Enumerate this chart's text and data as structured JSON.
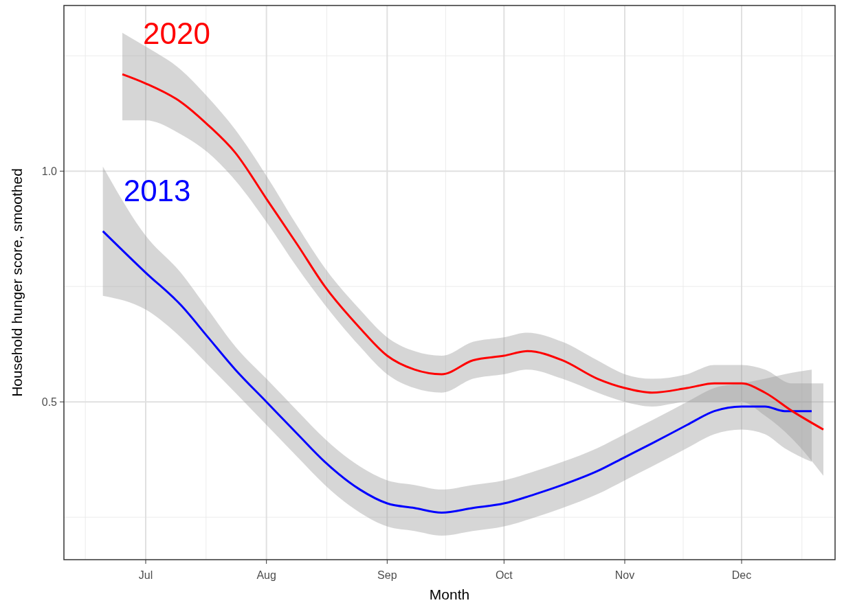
{
  "chart_data": {
    "type": "line",
    "xlabel": "Month",
    "ylabel": "Household hunger score, smoothed",
    "xlim": [
      "--06-10",
      "--12-25"
    ],
    "xticks": [
      {
        "value": "--07-01",
        "label": "Jul"
      },
      {
        "value": "--08-01",
        "label": "Aug"
      },
      {
        "value": "--09-01",
        "label": "Sep"
      },
      {
        "value": "--10-01",
        "label": "Oct"
      },
      {
        "value": "--11-01",
        "label": "Nov"
      },
      {
        "value": "--12-01",
        "label": "Dec"
      }
    ],
    "ylim": [
      0.158,
      1.359
    ],
    "yticks": [
      0.5,
      {
        "value": 1,
        "label": "1.0"
      }
    ],
    "grid": true,
    "series": [
      {
        "name": "2013",
        "color": "#0000ff",
        "x": [
          "--06-20",
          "--07-01",
          "--07-10",
          "--07-17",
          "--07-24",
          "--08-01",
          "--08-09",
          "--08-16",
          "--08-25",
          "--09-01",
          "--09-08",
          "--09-15",
          "--09-23",
          "--10-01",
          "--10-09",
          "--10-16",
          "--10-25",
          "--11-01",
          "--11-08",
          "--11-17",
          "--11-24",
          "--12-01",
          "--12-07",
          "--12-12",
          "--12-19"
        ],
        "values": [
          0.87,
          0.78,
          0.71,
          0.64,
          0.57,
          0.5,
          0.43,
          0.37,
          0.31,
          0.28,
          0.27,
          0.26,
          0.27,
          0.28,
          0.3,
          0.32,
          0.35,
          0.38,
          0.41,
          0.45,
          0.48,
          0.49,
          0.49,
          0.48,
          0.48
        ],
        "lower": [
          0.73,
          0.7,
          0.64,
          0.58,
          0.52,
          0.45,
          0.38,
          0.32,
          0.26,
          0.23,
          0.22,
          0.21,
          0.22,
          0.23,
          0.25,
          0.27,
          0.3,
          0.33,
          0.36,
          0.4,
          0.43,
          0.44,
          0.43,
          0.4,
          0.37
        ],
        "upper": [
          1.01,
          0.86,
          0.78,
          0.7,
          0.62,
          0.55,
          0.48,
          0.42,
          0.36,
          0.33,
          0.32,
          0.31,
          0.32,
          0.33,
          0.35,
          0.37,
          0.4,
          0.43,
          0.46,
          0.5,
          0.53,
          0.54,
          0.55,
          0.56,
          0.57
        ]
      },
      {
        "name": "2020",
        "color": "#ff0000",
        "x": [
          "--06-25",
          "--07-01",
          "--07-10",
          "--07-17",
          "--07-24",
          "--08-01",
          "--08-09",
          "--08-16",
          "--08-25",
          "--09-01",
          "--09-08",
          "--09-15",
          "--09-23",
          "--10-01",
          "--10-07",
          "--10-16",
          "--10-25",
          "--11-01",
          "--11-08",
          "--11-17",
          "--11-24",
          "--12-01",
          "--12-07",
          "--12-14",
          "--12-22"
        ],
        "values": [
          1.21,
          1.19,
          1.15,
          1.1,
          1.04,
          0.94,
          0.84,
          0.75,
          0.66,
          0.6,
          0.57,
          0.56,
          0.59,
          0.6,
          0.61,
          0.59,
          0.55,
          0.53,
          0.52,
          0.53,
          0.54,
          0.54,
          0.52,
          0.48,
          0.44
        ],
        "lower": [
          1.11,
          1.11,
          1.08,
          1.04,
          0.98,
          0.89,
          0.79,
          0.71,
          0.62,
          0.56,
          0.53,
          0.52,
          0.55,
          0.56,
          0.57,
          0.55,
          0.52,
          0.5,
          0.49,
          0.5,
          0.5,
          0.5,
          0.47,
          0.42,
          0.34
        ],
        "upper": [
          1.3,
          1.27,
          1.22,
          1.16,
          1.09,
          0.99,
          0.88,
          0.79,
          0.7,
          0.64,
          0.61,
          0.6,
          0.63,
          0.64,
          0.65,
          0.63,
          0.59,
          0.56,
          0.55,
          0.56,
          0.58,
          0.58,
          0.57,
          0.54,
          0.54
        ]
      }
    ]
  }
}
